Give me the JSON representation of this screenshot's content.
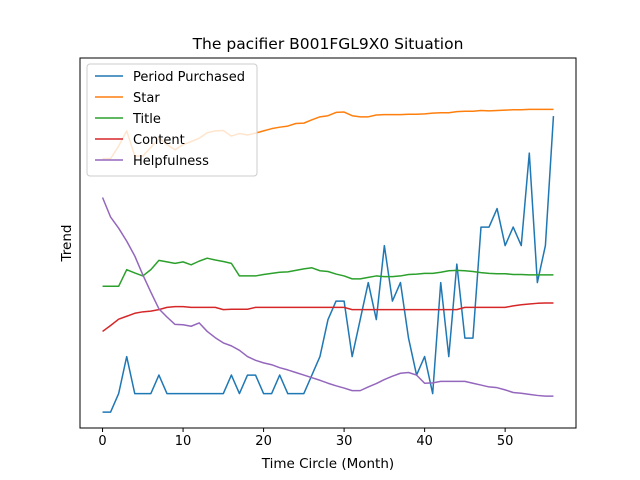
{
  "chart_data": {
    "type": "line",
    "title": "The pacifier B001FGL9X0 Situation",
    "xlabel": "Time Circle (Month)",
    "ylabel": "Trend",
    "x": [
      0,
      1,
      2,
      3,
      4,
      5,
      6,
      7,
      8,
      9,
      10,
      11,
      12,
      13,
      14,
      15,
      16,
      17,
      18,
      19,
      20,
      21,
      22,
      23,
      24,
      25,
      26,
      27,
      28,
      29,
      30,
      31,
      32,
      33,
      34,
      35,
      36,
      37,
      38,
      39,
      40,
      41,
      42,
      43,
      44,
      45,
      46,
      47,
      48,
      49,
      50,
      51,
      52,
      53,
      54,
      55,
      56
    ],
    "xlim": [
      -2.8,
      58.8
    ],
    "ylim": [
      0,
      100
    ],
    "xticks": [
      0,
      10,
      20,
      30,
      40,
      50
    ],
    "y_tick_labels_shown": false,
    "grid": false,
    "legend_position": "upper-left",
    "series": [
      {
        "name": "Period Purchased",
        "color": "#1f77b4",
        "values": [
          4.3,
          4.3,
          9.3,
          19.3,
          9.3,
          9.3,
          9.3,
          14.3,
          9.3,
          9.3,
          9.3,
          9.3,
          9.3,
          9.3,
          9.3,
          9.3,
          14.3,
          9.3,
          14.3,
          14.3,
          9.3,
          9.3,
          14.3,
          9.3,
          9.3,
          9.3,
          14.3,
          19.3,
          29.3,
          34.3,
          34.3,
          19.3,
          29.3,
          39.3,
          29.3,
          49.3,
          34.3,
          39.3,
          24.3,
          14.3,
          19.3,
          9.3,
          39.3,
          19.3,
          44.3,
          24.3,
          24.3,
          54.3,
          54.3,
          59.3,
          49.3,
          54.3,
          49.3,
          74.3,
          39.3,
          49.3,
          84.3
        ]
      },
      {
        "name": "Star",
        "color": "#ff7f0e",
        "values": [
          72.8,
          72.8,
          76.2,
          80.3,
          73.5,
          73.5,
          75.8,
          78.4,
          76.6,
          75.2,
          76.6,
          77.4,
          78.3,
          79.8,
          80.3,
          80.4,
          78.9,
          79.6,
          79.2,
          79.7,
          80.3,
          80.9,
          81.3,
          81.6,
          82.3,
          82.4,
          83.3,
          84.1,
          84.4,
          85.3,
          85.4,
          84.4,
          84.1,
          84.1,
          84.6,
          84.7,
          84.7,
          84.7,
          84.8,
          84.8,
          84.9,
          85.1,
          85.2,
          85.2,
          85.5,
          85.6,
          85.6,
          85.8,
          85.7,
          85.8,
          85.9,
          86.0,
          86.0,
          86.1,
          86.1,
          86.1,
          86.1
        ]
      },
      {
        "name": "Title",
        "color": "#2ca02c",
        "values": [
          38.3,
          38.3,
          38.3,
          42.8,
          41.9,
          41.1,
          42.8,
          45.3,
          44.9,
          44.5,
          44.9,
          44.1,
          45.1,
          45.9,
          45.4,
          45.0,
          44.5,
          41.1,
          41.1,
          41.1,
          41.5,
          41.8,
          42.1,
          42.2,
          42.6,
          43.0,
          43.3,
          42.5,
          42.3,
          41.6,
          41.1,
          40.3,
          40.3,
          40.7,
          41.1,
          40.9,
          40.9,
          41.1,
          41.5,
          41.6,
          41.8,
          41.8,
          42.1,
          42.5,
          42.6,
          42.5,
          42.3,
          42.0,
          41.8,
          41.7,
          41.7,
          41.5,
          41.5,
          41.4,
          41.4,
          41.4,
          41.4
        ]
      },
      {
        "name": "Content",
        "color": "#d62728",
        "values": [
          26.1,
          27.7,
          29.4,
          30.2,
          31.0,
          31.4,
          31.6,
          32.0,
          32.6,
          32.8,
          32.8,
          32.6,
          32.6,
          32.6,
          32.6,
          32.0,
          32.1,
          32.1,
          32.1,
          32.6,
          32.6,
          32.6,
          32.6,
          32.6,
          32.6,
          32.6,
          32.6,
          32.6,
          32.6,
          32.6,
          32.6,
          32.0,
          32.0,
          32.0,
          32.0,
          32.0,
          32.0,
          32.0,
          32.0,
          32.0,
          32.0,
          32.0,
          32.0,
          32.0,
          32.0,
          32.6,
          32.6,
          32.6,
          32.6,
          32.6,
          32.6,
          33.0,
          33.3,
          33.5,
          33.7,
          33.8,
          33.8
        ]
      },
      {
        "name": "Helpfulness",
        "color": "#9467bd",
        "values": [
          62.3,
          57.0,
          54.0,
          50.5,
          46.5,
          41.4,
          36.7,
          32.2,
          30.0,
          28.0,
          27.9,
          27.5,
          28.4,
          26.1,
          24.4,
          23.0,
          22.2,
          21.0,
          19.3,
          18.3,
          17.6,
          17.1,
          16.3,
          15.7,
          15.0,
          14.3,
          13.6,
          12.9,
          12.1,
          11.4,
          10.8,
          10.1,
          10.1,
          11.1,
          12.0,
          13.1,
          14.0,
          14.8,
          15.0,
          14.3,
          12.1,
          12.2,
          12.6,
          12.6,
          12.6,
          12.6,
          12.1,
          11.6,
          11.1,
          10.9,
          10.3,
          9.6,
          9.4,
          9.1,
          8.8,
          8.6,
          8.6
        ]
      }
    ]
  }
}
